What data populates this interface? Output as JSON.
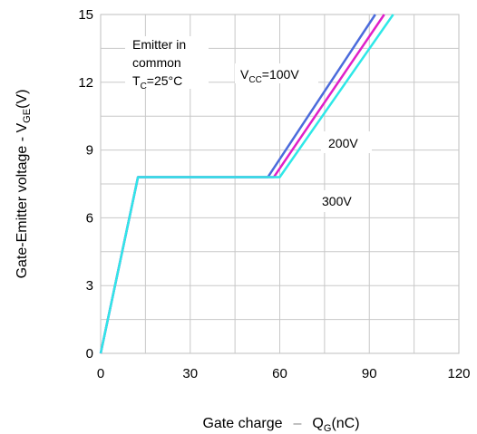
{
  "chart_data": {
    "type": "line",
    "xlabel": {
      "prefix": "Gate charge",
      "sep": "–",
      "sym": "Q",
      "sub": "G",
      "suffix": "(nC)"
    },
    "ylabel": {
      "prefix": "Gate-Emitter voltage - V",
      "sub": "GE",
      "suffix": "(V)"
    },
    "xlim": [
      0,
      120
    ],
    "ylim": [
      0,
      15
    ],
    "x_ticks": [
      "0",
      "30",
      "60",
      "90",
      "120"
    ],
    "y_ticks": [
      "0",
      "3",
      "6",
      "9",
      "12",
      "15"
    ],
    "grid": true,
    "conditions": {
      "line1": "Emitter in",
      "line2": "common",
      "tc_sym": "T",
      "tc_sub": "C",
      "tc_val": "=25°C"
    },
    "series": [
      {
        "name": "VCC=100V",
        "label_sym": "V",
        "label_sub": "CC",
        "label_val": "=100V",
        "color": "#4b6bdc",
        "x": [
          0,
          12.5,
          56,
          92
        ],
        "y": [
          0,
          7.8,
          7.8,
          15
        ]
      },
      {
        "name": "200V",
        "label_val": "200V",
        "color": "#e020c8",
        "x": [
          0,
          12.5,
          58,
          95
        ],
        "y": [
          0,
          7.8,
          7.8,
          15
        ]
      },
      {
        "name": "300V",
        "label_val": "300V",
        "color": "#2ee8e8",
        "x": [
          0,
          12.5,
          60,
          98
        ],
        "y": [
          0,
          7.8,
          7.8,
          15
        ]
      }
    ]
  }
}
